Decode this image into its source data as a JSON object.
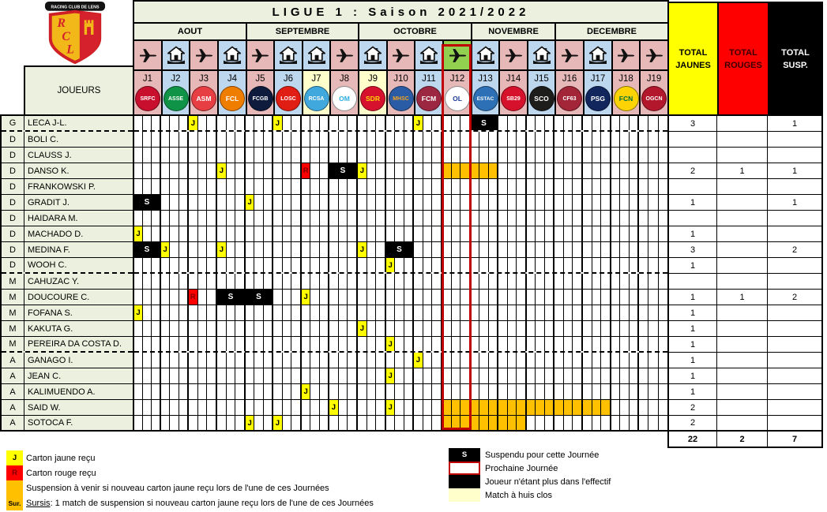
{
  "title": "LIGUE 1 : Saison 2021/2022",
  "club": {
    "banner": "RACING CLUB DE LENS",
    "initials": "RCL"
  },
  "players_header": "JOUEURS",
  "months": [
    {
      "label": "AOUT",
      "days": 4
    },
    {
      "label": "SEPTEMBRE",
      "days": 4
    },
    {
      "label": "OCTOBRE",
      "days": 4
    },
    {
      "label": "NOVEMBRE",
      "days": 3
    },
    {
      "label": "DECEMBRE",
      "days": 4
    }
  ],
  "next_matchday": "J12",
  "marks": {
    "yellow": "J",
    "red": "R",
    "suspended": "S"
  },
  "matchdays": [
    {
      "id": "J1",
      "venue": "away",
      "special": null,
      "club": {
        "code": "SRFC",
        "name": "Stade Rennais FC",
        "bg": "#c8102e",
        "fg": "#ffffff"
      }
    },
    {
      "id": "J2",
      "venue": "home",
      "special": null,
      "club": {
        "code": "ASSE",
        "name": "AS Saint-Etienne",
        "bg": "#0f9347",
        "fg": "#ffffff"
      }
    },
    {
      "id": "J3",
      "venue": "away",
      "special": null,
      "club": {
        "code": "ASM",
        "name": "AS Monaco",
        "bg": "#e63e42",
        "fg": "#ffffff"
      }
    },
    {
      "id": "J4",
      "venue": "home",
      "special": null,
      "club": {
        "code": "FCL",
        "name": "FC Lorient",
        "bg": "#ef7d00",
        "fg": "#ffffff"
      }
    },
    {
      "id": "J5",
      "venue": "away",
      "special": null,
      "club": {
        "code": "FCGB",
        "name": "Girondins de Bordeaux",
        "bg": "#0e1b3d",
        "fg": "#ffffff"
      }
    },
    {
      "id": "J6",
      "venue": "home",
      "special": null,
      "club": {
        "code": "LOSC",
        "name": "LOSC Lille",
        "bg": "#e01e13",
        "fg": "#ffffff"
      }
    },
    {
      "id": "J7",
      "venue": "home",
      "special": "huis_clos",
      "club": {
        "code": "RCSA",
        "name": "RC Strasbourg Alsace",
        "bg": "#41a8dd",
        "fg": "#ffffff"
      }
    },
    {
      "id": "J8",
      "venue": "away",
      "special": null,
      "club": {
        "code": "OM",
        "name": "Olympique de Marseille",
        "bg": "#ffffff",
        "fg": "#2faee0"
      }
    },
    {
      "id": "J9",
      "venue": "home",
      "special": "huis_clos",
      "club": {
        "code": "SDR",
        "name": "Stade de Reims",
        "bg": "#d5112d",
        "fg": "#ffd700"
      }
    },
    {
      "id": "J10",
      "venue": "away",
      "special": null,
      "club": {
        "code": "MHSC",
        "name": "Montpellier HSC",
        "bg": "#2a5ca5",
        "fg": "#f6a21d"
      }
    },
    {
      "id": "J11",
      "venue": "home",
      "special": null,
      "club": {
        "code": "FCM",
        "name": "FC Metz",
        "bg": "#9b2741",
        "fg": "#ffffff"
      }
    },
    {
      "id": "J12",
      "venue": "away",
      "special": "next",
      "club": {
        "code": "OL",
        "name": "Olympique Lyonnais",
        "bg": "#ffffff",
        "fg": "#1b3d94"
      }
    },
    {
      "id": "J13",
      "venue": "home",
      "special": null,
      "club": {
        "code": "ESTAC",
        "name": "ESTAC Troyes",
        "bg": "#2d70b5",
        "fg": "#ffffff"
      }
    },
    {
      "id": "J14",
      "venue": "away",
      "special": null,
      "club": {
        "code": "SB29",
        "name": "Stade Brestois 29",
        "bg": "#d6112b",
        "fg": "#ffffff"
      }
    },
    {
      "id": "J15",
      "venue": "home",
      "special": null,
      "club": {
        "code": "SCO",
        "name": "Angers SCO",
        "bg": "#1d1d1b",
        "fg": "#ffffff"
      }
    },
    {
      "id": "J16",
      "venue": "away",
      "special": null,
      "club": {
        "code": "CF63",
        "name": "Clermont Foot 63",
        "bg": "#a32638",
        "fg": "#ffffff"
      }
    },
    {
      "id": "J17",
      "venue": "home",
      "special": null,
      "club": {
        "code": "PSG",
        "name": "Paris Saint-Germain",
        "bg": "#10265c",
        "fg": "#ffffff"
      }
    },
    {
      "id": "J18",
      "venue": "away",
      "special": null,
      "club": {
        "code": "FCN",
        "name": "FC Nantes",
        "bg": "#fcd405",
        "fg": "#006e3a"
      }
    },
    {
      "id": "J19",
      "venue": "away",
      "special": null,
      "club": {
        "code": "OGCN",
        "name": "OGC Nice",
        "bg": "#b3172c",
        "fg": "#ffffff"
      }
    }
  ],
  "group_breaks_after": [
    0,
    9,
    14
  ],
  "players": [
    {
      "pos": "G",
      "name": "LECA J-L.",
      "cards": [
        {
          "d": 3,
          "t": "J"
        },
        {
          "d": 6,
          "t": "J"
        },
        {
          "d": 11,
          "t": "J"
        }
      ],
      "susp": [
        13
      ],
      "orange": null,
      "tj": "3",
      "tr": "",
      "ts": "1"
    },
    {
      "pos": "D",
      "name": "BOLI C.",
      "cards": [],
      "susp": [],
      "orange": null,
      "tj": "",
      "tr": "",
      "ts": ""
    },
    {
      "pos": "D",
      "name": "CLAUSS J.",
      "cards": [],
      "susp": [],
      "orange": null,
      "tj": "",
      "tr": "",
      "ts": ""
    },
    {
      "pos": "D",
      "name": "DANSO K.",
      "cards": [
        {
          "d": 4,
          "t": "J"
        },
        {
          "d": 7,
          "t": "R"
        },
        {
          "d": 9,
          "t": "J"
        }
      ],
      "susp": [
        8
      ],
      "orange": [
        12,
        13
      ],
      "tj": "2",
      "tr": "1",
      "ts": "1"
    },
    {
      "pos": "D",
      "name": "FRANKOWSKI P.",
      "cards": [],
      "susp": [],
      "orange": null,
      "tj": "",
      "tr": "",
      "ts": ""
    },
    {
      "pos": "D",
      "name": "GRADIT J.",
      "cards": [
        {
          "d": 5,
          "t": "J"
        }
      ],
      "susp": [
        1
      ],
      "orange": null,
      "tj": "1",
      "tr": "",
      "ts": "1"
    },
    {
      "pos": "D",
      "name": "HAIDARA M.",
      "cards": [],
      "susp": [],
      "orange": null,
      "tj": "",
      "tr": "",
      "ts": ""
    },
    {
      "pos": "D",
      "name": "MACHADO D.",
      "cards": [
        {
          "d": 1,
          "t": "J"
        }
      ],
      "susp": [],
      "orange": null,
      "tj": "1",
      "tr": "",
      "ts": ""
    },
    {
      "pos": "D",
      "name": "MEDINA F.",
      "cards": [
        {
          "d": 2,
          "t": "J"
        },
        {
          "d": 4,
          "t": "J"
        },
        {
          "d": 9,
          "t": "J"
        }
      ],
      "susp": [
        1,
        10
      ],
      "orange": null,
      "tj": "3",
      "tr": "",
      "ts": "2"
    },
    {
      "pos": "D",
      "name": "WOOH C.",
      "cards": [
        {
          "d": 10,
          "t": "J"
        }
      ],
      "susp": [],
      "orange": null,
      "tj": "1",
      "tr": "",
      "ts": ""
    },
    {
      "pos": "M",
      "name": "CAHUZAC Y.",
      "cards": [],
      "susp": [],
      "orange": null,
      "tj": "",
      "tr": "",
      "ts": ""
    },
    {
      "pos": "M",
      "name": "DOUCOURE C.",
      "cards": [
        {
          "d": 3,
          "t": "R"
        },
        {
          "d": 7,
          "t": "J"
        }
      ],
      "susp": [
        4,
        5
      ],
      "orange": null,
      "tj": "1",
      "tr": "1",
      "ts": "2"
    },
    {
      "pos": "M",
      "name": "FOFANA S.",
      "cards": [
        {
          "d": 1,
          "t": "J"
        }
      ],
      "susp": [],
      "orange": null,
      "tj": "1",
      "tr": "",
      "ts": ""
    },
    {
      "pos": "M",
      "name": "KAKUTA G.",
      "cards": [
        {
          "d": 9,
          "t": "J"
        }
      ],
      "susp": [],
      "orange": null,
      "tj": "1",
      "tr": "",
      "ts": ""
    },
    {
      "pos": "M",
      "name": "PEREIRA DA COSTA D.",
      "cards": [
        {
          "d": 10,
          "t": "J"
        }
      ],
      "susp": [],
      "orange": null,
      "tj": "1",
      "tr": "",
      "ts": ""
    },
    {
      "pos": "A",
      "name": "GANAGO I.",
      "cards": [
        {
          "d": 11,
          "t": "J"
        }
      ],
      "susp": [],
      "orange": null,
      "tj": "1",
      "tr": "",
      "ts": ""
    },
    {
      "pos": "A",
      "name": "JEAN C.",
      "cards": [
        {
          "d": 10,
          "t": "J"
        }
      ],
      "susp": [],
      "orange": null,
      "tj": "1",
      "tr": "",
      "ts": ""
    },
    {
      "pos": "A",
      "name": "KALIMUENDO A.",
      "cards": [
        {
          "d": 7,
          "t": "J"
        }
      ],
      "susp": [],
      "orange": null,
      "tj": "1",
      "tr": "",
      "ts": ""
    },
    {
      "pos": "A",
      "name": "SAID W.",
      "cards": [
        {
          "d": 8,
          "t": "J"
        },
        {
          "d": 10,
          "t": "J"
        }
      ],
      "susp": [],
      "orange": [
        12,
        17
      ],
      "tj": "2",
      "tr": "",
      "ts": ""
    },
    {
      "pos": "A",
      "name": "SOTOCA F.",
      "cards": [
        {
          "d": 5,
          "t": "J"
        },
        {
          "d": 6,
          "t": "J"
        }
      ],
      "susp": [],
      "orange": [
        12,
        14
      ],
      "tj": "2",
      "tr": "",
      "ts": ""
    }
  ],
  "totals": {
    "headers": [
      "TOTAL JAUNES",
      "TOTAL ROUGES",
      "TOTAL SUSP."
    ],
    "row": {
      "yellow": "22",
      "red": "2",
      "susp": "7"
    }
  },
  "legend_left": [
    {
      "name": "legend-yellow-card",
      "key": "J",
      "box": "yellow",
      "text": "Carton jaune reçu"
    },
    {
      "name": "legend-red-card",
      "key": "R",
      "box": "red",
      "text": "Carton rouge reçu"
    },
    {
      "name": "legend-risk",
      "key": "",
      "box": "orange",
      "text": "Suspension à venir si nouveau carton jaune reçu lors de l'une de ces Journées"
    },
    {
      "name": "legend-sursis",
      "key": "Sur.",
      "box": "orange",
      "underlined": "Sursis",
      "text": " : 1 match de suspension si nouveau carton jaune reçu lors de l'une de ces Journées"
    }
  ],
  "legend_right": [
    {
      "name": "legend-suspended",
      "key": "S",
      "box": "black",
      "text": "Suspendu pour cette Journée"
    },
    {
      "name": "legend-next-matchday",
      "key": "",
      "box": "next",
      "text": "Prochaine Journée"
    },
    {
      "name": "legend-removed-player",
      "key": "",
      "box": "blackfill",
      "text": "Joueur n'étant plus dans l'effectif"
    },
    {
      "name": "legend-closed-doors",
      "key": "",
      "box": "huis",
      "text": "Match à huis clos"
    }
  ],
  "colors": {
    "away_pink": "#e6b9b8",
    "home_blue": "#bdd7ee",
    "next_green": "#92d050",
    "huis_clos": "#ffffcc",
    "orange_risk": "#ffc000",
    "yellow_card": "#ffff00",
    "red_card": "#ff0000",
    "header_beige": "#ebf1de",
    "next_border_red": "#c00000"
  }
}
